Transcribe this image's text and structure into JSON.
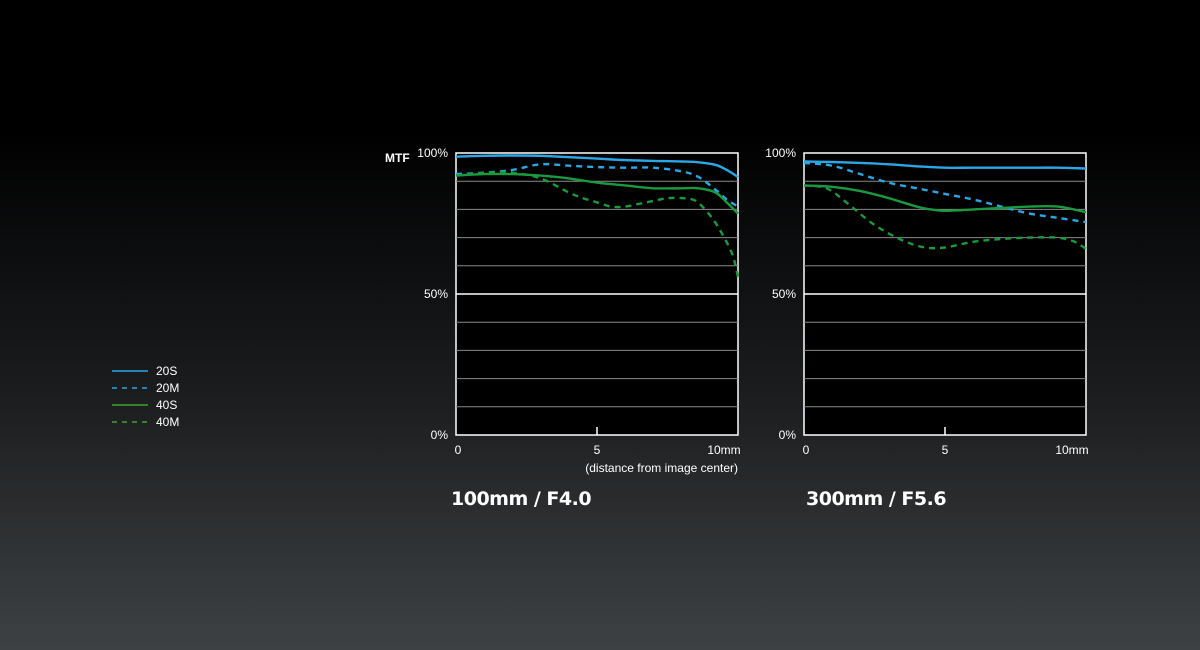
{
  "colors": {
    "s20": "#2aa7e6",
    "m20": "#2aa7e6",
    "s40": "#1a9a3e",
    "m40": "#1a9a3e",
    "grid": "#8a8a8a",
    "frame": "#ffffff"
  },
  "legend": [
    {
      "label": "20S",
      "color": "#2aa7e6",
      "dash": false
    },
    {
      "label": "20M",
      "color": "#2aa7e6",
      "dash": true
    },
    {
      "label": "40S",
      "color": "#1a9a3e",
      "dash": false
    },
    {
      "label": "40M",
      "color": "#1a9a3e",
      "dash": true
    }
  ],
  "chart_data": [
    {
      "type": "line",
      "title": "100mm / F4.0",
      "ylabel": "MTF",
      "xlabel": "(distance from image center)",
      "xlim": [
        0,
        10
      ],
      "ylim": [
        0,
        100
      ],
      "x_ticks": [
        "0",
        "5",
        "10mm"
      ],
      "y_ticks": [
        "0%",
        "50%",
        "100%"
      ],
      "grid": true,
      "series": [
        {
          "name": "20S",
          "dash": false,
          "x": [
            0,
            1,
            2,
            3,
            4,
            5,
            6,
            7,
            8,
            8.6,
            9.2,
            9.6,
            10
          ],
          "y": [
            98.7,
            99.0,
            99.1,
            99.0,
            98.5,
            98.0,
            97.5,
            97.2,
            97.0,
            96.7,
            95.8,
            94.0,
            91.5
          ]
        },
        {
          "name": "20M",
          "dash": true,
          "x": [
            0,
            1,
            2,
            3,
            4,
            5,
            6,
            7,
            8,
            8.6,
            9.2,
            9.6,
            10
          ],
          "y": [
            92.5,
            93.0,
            94.0,
            96.0,
            95.5,
            95.0,
            94.8,
            94.8,
            93.5,
            91.5,
            87.0,
            83.5,
            81.0
          ]
        },
        {
          "name": "40S",
          "dash": false,
          "x": [
            0,
            1,
            2,
            3,
            4,
            5,
            6,
            7,
            8,
            8.6,
            9.2,
            9.6,
            10
          ],
          "y": [
            92.0,
            92.5,
            92.5,
            92.0,
            91.0,
            89.5,
            88.5,
            87.5,
            87.5,
            87.5,
            86.0,
            82.5,
            78.5
          ]
        },
        {
          "name": "40M",
          "dash": true,
          "x": [
            0,
            1,
            2,
            3,
            4,
            4.5,
            5,
            5.5,
            6,
            6.5,
            7,
            7.5,
            8,
            8.5,
            9,
            9.4,
            9.8,
            10
          ],
          "y": [
            92.0,
            93.0,
            93.0,
            91.0,
            86.0,
            84.0,
            82.5,
            81.0,
            81.0,
            82.0,
            83.0,
            84.0,
            84.0,
            83.0,
            78.0,
            72.0,
            64.0,
            56.0
          ]
        }
      ]
    },
    {
      "type": "line",
      "title": "300mm / F5.6",
      "xlim": [
        0,
        10
      ],
      "ylim": [
        0,
        100
      ],
      "x_ticks": [
        "0",
        "5",
        "10mm"
      ],
      "y_ticks": [
        "0%",
        "50%",
        "100%"
      ],
      "grid": true,
      "series": [
        {
          "name": "20S",
          "dash": false,
          "x": [
            0,
            1,
            2,
            3,
            4,
            5,
            6,
            7,
            8,
            9,
            10
          ],
          "y": [
            97.0,
            96.8,
            96.5,
            96.0,
            95.3,
            94.8,
            94.8,
            94.8,
            94.8,
            94.8,
            94.5
          ]
        },
        {
          "name": "20M",
          "dash": true,
          "x": [
            0,
            1,
            2,
            3,
            4,
            5,
            6,
            7,
            8,
            9,
            10
          ],
          "y": [
            96.5,
            95.5,
            92.5,
            89.5,
            87.5,
            85.5,
            83.5,
            81.0,
            78.5,
            77.0,
            75.5
          ]
        },
        {
          "name": "40S",
          "dash": false,
          "x": [
            0,
            1,
            2,
            3,
            4,
            4.5,
            5,
            6,
            7,
            8,
            9,
            10
          ],
          "y": [
            88.5,
            88.0,
            86.5,
            84.0,
            81.0,
            80.0,
            79.5,
            80.0,
            80.5,
            81.0,
            81.0,
            79.0
          ]
        },
        {
          "name": "40M",
          "dash": true,
          "x": [
            0,
            0.8,
            1.5,
            2.5,
            3.5,
            4.3,
            5,
            6,
            7,
            8,
            9,
            9.6,
            10
          ],
          "y": [
            88.5,
            87.5,
            82.5,
            74.5,
            69.0,
            66.5,
            66.5,
            68.5,
            69.5,
            70.0,
            70.0,
            68.5,
            66.0
          ]
        }
      ]
    }
  ]
}
